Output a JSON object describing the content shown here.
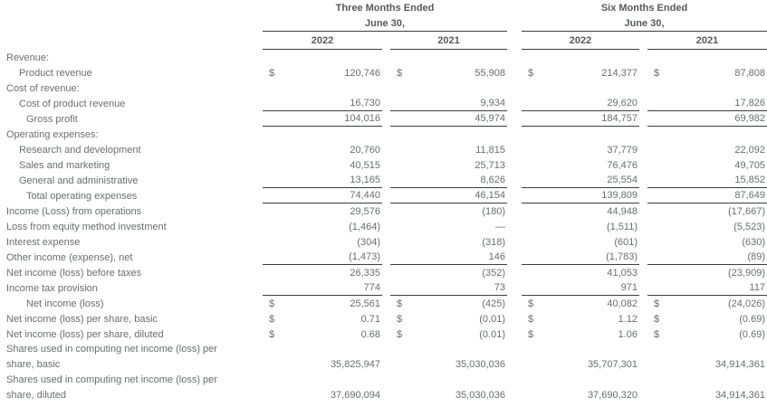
{
  "colors": {
    "background": "#ffffff",
    "text_gray": "#686d73",
    "header_gray": "#55595f",
    "rule_dark": "#3a3e43"
  },
  "currency": "$",
  "header": {
    "groups": [
      {
        "title": "Three Months Ended",
        "date": "June 30,",
        "years": [
          "2022",
          "2021"
        ]
      },
      {
        "title": "Six Months Ended",
        "date": "June 30,",
        "years": [
          "2022",
          "2021"
        ]
      }
    ]
  },
  "rows": [
    {
      "label": "Revenue:"
    },
    {
      "label": "Product revenue",
      "t22": "120,746",
      "t21": "55,908",
      "s22": "214,377",
      "s21": "87,808"
    },
    {
      "label": "Cost of revenue:"
    },
    {
      "label": "Cost of product revenue",
      "t22": "16,730",
      "t21": "9,934",
      "s22": "29,620",
      "s21": "17,826"
    },
    {
      "label": "Gross profit",
      "t22": "104,016",
      "t21": "45,974",
      "s22": "184,757",
      "s21": "69,982"
    },
    {
      "label": "Operating expenses:"
    },
    {
      "label": "Research and development",
      "t22": "20,760",
      "t21": "11,815",
      "s22": "37,779",
      "s21": "22,092"
    },
    {
      "label": "Sales and marketing",
      "t22": "40,515",
      "t21": "25,713",
      "s22": "76,476",
      "s21": "49,705"
    },
    {
      "label": "General and administrative",
      "t22": "13,165",
      "t21": "8,626",
      "s22": "25,554",
      "s21": "15,852"
    },
    {
      "label": "Total operating expenses",
      "t22": "74,440",
      "t21": "46,154",
      "s22": "139,809",
      "s21": "87,649"
    },
    {
      "label": "Income (Loss) from operations",
      "t22": "29,576",
      "t21": "(180)",
      "s22": "44,948",
      "s21": "(17,667)"
    },
    {
      "label": "Loss from equity method investment",
      "t22": "(1,464)",
      "t21": "—",
      "s22": "(1,511)",
      "s21": "(5,523)"
    },
    {
      "label": "Interest expense",
      "t22": "(304)",
      "t21": "(318)",
      "s22": "(601)",
      "s21": "(630)"
    },
    {
      "label": "Other income (expense), net",
      "t22": "(1,473)",
      "t21": "146",
      "s22": "(1,783)",
      "s21": "(89)"
    },
    {
      "label": "Net income (loss) before taxes",
      "t22": "26,335",
      "t21": "(352)",
      "s22": "41,053",
      "s21": "(23,909)"
    },
    {
      "label": "Income tax provision",
      "t22": "774",
      "t21": "73",
      "s22": "971",
      "s21": "117"
    },
    {
      "label": "Net income (loss)",
      "t22": "25,561",
      "t21": "(425)",
      "s22": "40,082",
      "s21": "(24,026)"
    },
    {
      "label": "Net income (loss) per share, basic",
      "t22": "0.71",
      "t21": "(0.01)",
      "s22": "1.12",
      "s21": "(0.69)"
    },
    {
      "label": "Net income (loss) per share, diluted",
      "t22": "0.68",
      "t21": "(0.01)",
      "s22": "1.06",
      "s21": "(0.69)"
    },
    {
      "label": "Shares used in computing net income (loss) per share, basic",
      "t22": "35,825,947",
      "t21": "35,030,036",
      "s22": "35,707,301",
      "s21": "34,914,361"
    },
    {
      "label": "Shares used in computing net income (loss) per share, diluted",
      "t22": "37,690,094",
      "t21": "35,030,036",
      "s22": "37,690,320",
      "s21": "34,914,361"
    }
  ]
}
